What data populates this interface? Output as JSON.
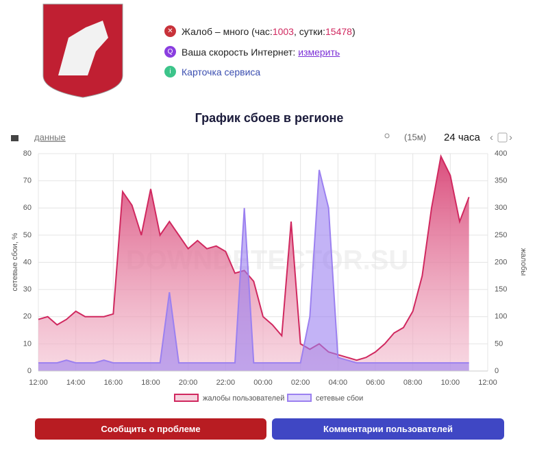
{
  "header": {
    "complaints": {
      "text": "Жалоб – много (час: ",
      "hour": "1003",
      "sep": ", сутки: ",
      "day": "15478",
      "end": ")"
    },
    "speed": {
      "text": "Ваша скорость Интернет:",
      "link": "измерить"
    },
    "service_card": "Карточка сервиса"
  },
  "controls": {
    "data_link": "данные",
    "interval": "(15м)",
    "period": "24 часа"
  },
  "buttons": [
    "Сообщить о проблеме",
    "Комментарии пользователей"
  ],
  "chart_data": {
    "type": "area",
    "title": "График сбоев в регионе",
    "watermark": "DOWNDETECTOR.SU",
    "ylabel": "сетевые сбои, %",
    "y2label": "жалобы",
    "x": [
      12,
      12.5,
      13,
      13.5,
      14,
      14.5,
      15,
      15.5,
      16,
      16.5,
      17,
      17.5,
      18,
      18.5,
      19,
      19.5,
      20,
      20.5,
      21,
      21.5,
      22,
      22.5,
      23,
      23.5,
      24,
      24.5,
      25,
      25.5,
      26,
      26.5,
      27,
      27.5,
      28,
      28.5,
      29,
      29.5,
      30,
      30.5,
      31,
      31.5,
      32,
      32.5,
      33,
      33.5,
      34,
      34.5,
      35
    ],
    "xlim": [
      12,
      36
    ],
    "xticks": [
      {
        "value": 12,
        "label": "12:00"
      },
      {
        "value": 14,
        "label": "14:00"
      },
      {
        "value": 16,
        "label": "16:00"
      },
      {
        "value": 18,
        "label": "18:00"
      },
      {
        "value": 20,
        "label": "20:00"
      },
      {
        "value": 22,
        "label": "22:00"
      },
      {
        "value": 24,
        "label": "00:00"
      },
      {
        "value": 26,
        "label": "02:00"
      },
      {
        "value": 28,
        "label": "04:00"
      },
      {
        "value": 30,
        "label": "06:00"
      },
      {
        "value": 32,
        "label": "08:00"
      },
      {
        "value": 34,
        "label": "10:00"
      },
      {
        "value": 36,
        "label": "12:00"
      }
    ],
    "ylim": [
      0,
      80
    ],
    "yticks": [
      0,
      10,
      20,
      30,
      40,
      50,
      60,
      70,
      80
    ],
    "y2lim": [
      0,
      400
    ],
    "y2ticks": [
      0,
      50,
      100,
      150,
      200,
      250,
      300,
      350,
      400
    ],
    "grid": true,
    "series": [
      {
        "name": "жалобы пользователей",
        "color": "#d0285f",
        "axis": "y2",
        "values": [
          95,
          100,
          85,
          95,
          110,
          100,
          100,
          100,
          105,
          330,
          305,
          250,
          335,
          250,
          275,
          250,
          225,
          240,
          225,
          230,
          220,
          180,
          185,
          165,
          100,
          85,
          65,
          275,
          50,
          40,
          50,
          35,
          30,
          25,
          20,
          25,
          35,
          50,
          70,
          80,
          110,
          175,
          300,
          395,
          360,
          275,
          320
        ]
      },
      {
        "name": "сетевые сбои",
        "color": "#9b80f0",
        "values": [
          3,
          3,
          3,
          4,
          3,
          3,
          3,
          4,
          3,
          3,
          3,
          3,
          3,
          3,
          29,
          3,
          3,
          3,
          3,
          3,
          3,
          3,
          60,
          3,
          3,
          3,
          3,
          3,
          3,
          20,
          74,
          60,
          5,
          4,
          3,
          3,
          3,
          3,
          3,
          3,
          3,
          3,
          3,
          3,
          3,
          3,
          3
        ]
      }
    ]
  }
}
